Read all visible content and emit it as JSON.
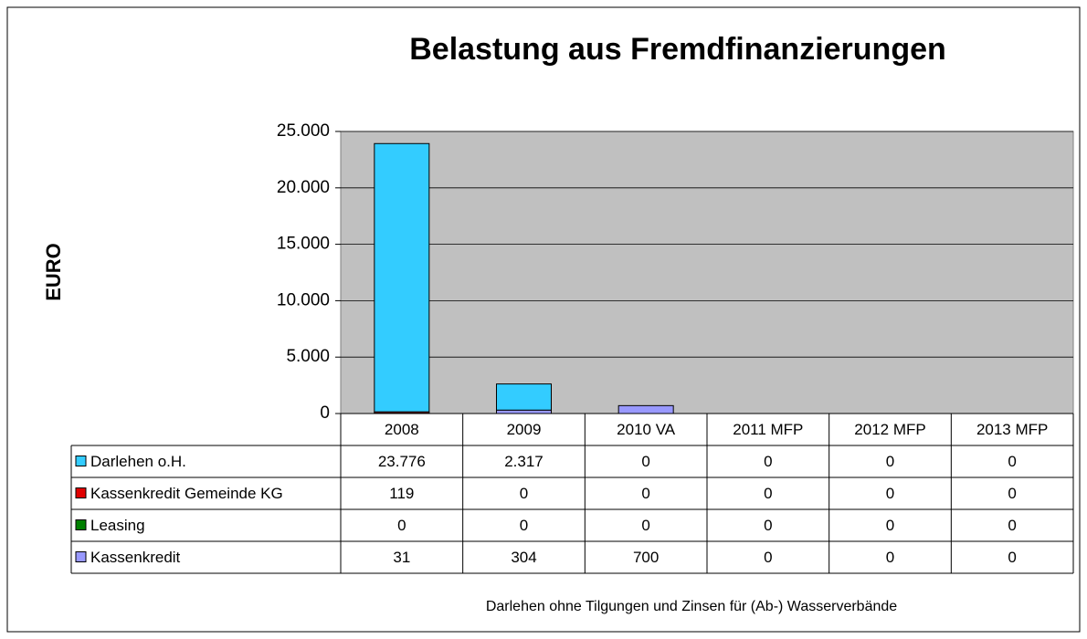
{
  "chart_data": {
    "type": "stacked_bar",
    "title": "Belastung aus Fremdfinanzierungen",
    "ylabel": "EURO",
    "xlabel": "Darlehen ohne Tilgungen und Zinsen für (Ab-) Wasserverbände",
    "categories": [
      "2008",
      "2009",
      "2010 VA",
      "2011 MFP",
      "2012 MFP",
      "2013 MFP"
    ],
    "series": [
      {
        "name": "Darlehen o.H.",
        "color": "#33ccff",
        "values": [
          23776,
          2317,
          0,
          0,
          0,
          0
        ],
        "value_labels": [
          "23.776",
          "2.317",
          "0",
          "0",
          "0",
          "0"
        ]
      },
      {
        "name": "Kassenkredit Gemeinde KG",
        "color": "#e00000",
        "values": [
          119,
          0,
          0,
          0,
          0,
          0
        ],
        "value_labels": [
          "119",
          "0",
          "0",
          "0",
          "0",
          "0"
        ]
      },
      {
        "name": "Leasing",
        "color": "#008000",
        "values": [
          0,
          0,
          0,
          0,
          0,
          0
        ],
        "value_labels": [
          "0",
          "0",
          "0",
          "0",
          "0",
          "0"
        ]
      },
      {
        "name": "Kassenkredit",
        "color": "#9999ff",
        "values": [
          31,
          304,
          700,
          0,
          0,
          0
        ],
        "value_labels": [
          "31",
          "304",
          "700",
          "0",
          "0",
          "0"
        ]
      }
    ],
    "ylim": [
      0,
      25000
    ],
    "yticks": [
      0,
      {
        "value": 5000,
        "label": "5.000"
      },
      {
        "value": 10000,
        "label": "10.000"
      },
      {
        "value": 15000,
        "label": "15.000"
      },
      {
        "value": 20000,
        "label": "20.000"
      },
      {
        "value": 25000,
        "label": "25.000"
      }
    ],
    "grid": true,
    "plot_background": "#c0c0c0"
  }
}
